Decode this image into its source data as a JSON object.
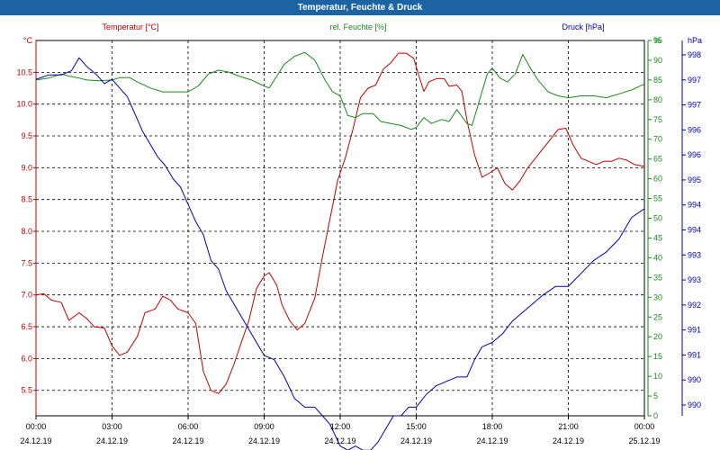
{
  "window": {
    "title": "Temperatur, Feuchte & Druck"
  },
  "chart_data": {
    "type": "line",
    "title": "Temperatur, Feuchte & Druck",
    "grid": true,
    "x_ticks": [
      {
        "time": "00:00",
        "date": "24.12.19"
      },
      {
        "time": "03:00",
        "date": "24.12.19"
      },
      {
        "time": "06:00",
        "date": "24.12.19"
      },
      {
        "time": "09:00",
        "date": "24.12.19"
      },
      {
        "time": "12:00",
        "date": "24.12.19"
      },
      {
        "time": "15:00",
        "date": "24.12.19"
      },
      {
        "time": "18:00",
        "date": "24.12.19"
      },
      {
        "time": "21:00",
        "date": "24.12.19"
      },
      {
        "time": "00:00",
        "date": "25.12.19"
      }
    ],
    "x_range_hours": [
      0,
      24
    ],
    "axes": {
      "temperature": {
        "unit_label": "°C",
        "legend": "Temperatur [°C]",
        "color": "#c00000",
        "range": [
          5.1,
          11.0
        ],
        "tick_labels": [
          "10.5",
          "10.0",
          "9.5",
          "9.0",
          "8.5",
          "8.0",
          "7.5",
          "7.0",
          "6.5",
          "6.0",
          "5.5"
        ]
      },
      "humidity": {
        "unit_label": "%",
        "legend": "rel. Feuchte [%]",
        "color": "#1a8a1a",
        "range": [
          0,
          95
        ],
        "tick_labels": [
          "95",
          "90",
          "85",
          "80",
          "75",
          "70",
          "65",
          "60",
          "55",
          "50",
          "45",
          "40",
          "35",
          "30",
          "25",
          "20",
          "15",
          "10",
          "5",
          "0"
        ]
      },
      "pressure": {
        "unit_label": "hPa",
        "legend": "Druck [hPa]",
        "color": "#0000aa",
        "range": [
          989.6,
          998.3
        ],
        "tick_labels": [
          "998",
          "997",
          "997",
          "996",
          "996",
          "995",
          "994",
          "994",
          "993",
          "993",
          "992",
          "991",
          "991",
          "990",
          "990"
        ]
      }
    },
    "series": [
      {
        "name": "Temperatur [°C]",
        "axis": "temperature",
        "points": [
          [
            0,
            7.0
          ],
          [
            0.3,
            7.02
          ],
          [
            0.6,
            6.92
          ],
          [
            1.0,
            6.88
          ],
          [
            1.3,
            6.6
          ],
          [
            1.7,
            6.72
          ],
          [
            2.0,
            6.63
          ],
          [
            2.3,
            6.5
          ],
          [
            2.7,
            6.48
          ],
          [
            3.0,
            6.2
          ],
          [
            3.3,
            6.05
          ],
          [
            3.6,
            6.1
          ],
          [
            4.0,
            6.35
          ],
          [
            4.3,
            6.72
          ],
          [
            4.7,
            6.78
          ],
          [
            5.0,
            6.98
          ],
          [
            5.3,
            6.92
          ],
          [
            5.6,
            6.78
          ],
          [
            6.0,
            6.72
          ],
          [
            6.3,
            6.55
          ],
          [
            6.6,
            5.8
          ],
          [
            6.9,
            5.5
          ],
          [
            7.2,
            5.45
          ],
          [
            7.5,
            5.6
          ],
          [
            7.8,
            5.9
          ],
          [
            8.1,
            6.25
          ],
          [
            8.4,
            6.6
          ],
          [
            8.7,
            7.1
          ],
          [
            9.0,
            7.3
          ],
          [
            9.2,
            7.35
          ],
          [
            9.5,
            7.15
          ],
          [
            9.7,
            6.85
          ],
          [
            10.0,
            6.6
          ],
          [
            10.3,
            6.45
          ],
          [
            10.6,
            6.55
          ],
          [
            11.0,
            6.95
          ],
          [
            11.3,
            7.6
          ],
          [
            11.6,
            8.2
          ],
          [
            11.9,
            8.8
          ],
          [
            12.2,
            9.15
          ],
          [
            12.5,
            9.6
          ],
          [
            12.8,
            10.1
          ],
          [
            13.1,
            10.25
          ],
          [
            13.4,
            10.3
          ],
          [
            13.7,
            10.55
          ],
          [
            14.0,
            10.65
          ],
          [
            14.3,
            10.8
          ],
          [
            14.6,
            10.8
          ],
          [
            14.9,
            10.72
          ],
          [
            15.1,
            10.45
          ],
          [
            15.3,
            10.2
          ],
          [
            15.5,
            10.35
          ],
          [
            15.8,
            10.4
          ],
          [
            16.1,
            10.4
          ],
          [
            16.3,
            10.28
          ],
          [
            16.6,
            10.3
          ],
          [
            16.8,
            10.2
          ],
          [
            17.0,
            9.75
          ],
          [
            17.3,
            9.2
          ],
          [
            17.6,
            8.85
          ],
          [
            17.9,
            8.92
          ],
          [
            18.2,
            9.0
          ],
          [
            18.5,
            8.75
          ],
          [
            18.8,
            8.65
          ],
          [
            19.1,
            8.8
          ],
          [
            19.4,
            9.0
          ],
          [
            19.7,
            9.15
          ],
          [
            20.0,
            9.3
          ],
          [
            20.3,
            9.45
          ],
          [
            20.6,
            9.6
          ],
          [
            20.9,
            9.62
          ],
          [
            21.2,
            9.35
          ],
          [
            21.5,
            9.15
          ],
          [
            21.8,
            9.1
          ],
          [
            22.1,
            9.05
          ],
          [
            22.4,
            9.1
          ],
          [
            22.7,
            9.1
          ],
          [
            23.0,
            9.15
          ],
          [
            23.3,
            9.12
          ],
          [
            23.6,
            9.05
          ],
          [
            24.0,
            9.02
          ]
        ]
      },
      {
        "name": "rel. Feuchte [%]",
        "axis": "humidity",
        "points": [
          [
            0,
            85.0
          ],
          [
            0.5,
            85.5
          ],
          [
            1.0,
            86.5
          ],
          [
            1.3,
            86.0
          ],
          [
            1.7,
            85.5
          ],
          [
            2.0,
            85.0
          ],
          [
            2.5,
            84.8
          ],
          [
            3.0,
            85.0
          ],
          [
            3.3,
            85.6
          ],
          [
            3.7,
            85.6
          ],
          [
            4.0,
            84.5
          ],
          [
            4.5,
            83.0
          ],
          [
            5.0,
            82.0
          ],
          [
            5.5,
            82.0
          ],
          [
            6.0,
            82.0
          ],
          [
            6.4,
            83.5
          ],
          [
            6.8,
            86.5
          ],
          [
            7.2,
            87.5
          ],
          [
            7.6,
            87.0
          ],
          [
            8.0,
            86.0
          ],
          [
            8.5,
            85.0
          ],
          [
            9.0,
            83.5
          ],
          [
            9.2,
            83.0
          ],
          [
            9.5,
            86.0
          ],
          [
            9.8,
            89.0
          ],
          [
            10.2,
            91.0
          ],
          [
            10.6,
            92.0
          ],
          [
            11.0,
            90.0
          ],
          [
            11.4,
            85.0
          ],
          [
            11.7,
            82.0
          ],
          [
            12.0,
            81.0
          ],
          [
            12.3,
            76.0
          ],
          [
            12.6,
            75.5
          ],
          [
            12.9,
            76.5
          ],
          [
            13.3,
            76.5
          ],
          [
            13.6,
            74.5
          ],
          [
            14.0,
            74.0
          ],
          [
            14.4,
            73.5
          ],
          [
            14.8,
            72.5
          ],
          [
            15.0,
            73.0
          ],
          [
            15.3,
            75.5
          ],
          [
            15.6,
            74.0
          ],
          [
            16.0,
            75.0
          ],
          [
            16.3,
            74.5
          ],
          [
            16.6,
            77.5
          ],
          [
            17.0,
            74.0
          ],
          [
            17.2,
            73.5
          ],
          [
            17.5,
            80.0
          ],
          [
            17.8,
            86.5
          ],
          [
            18.0,
            88.0
          ],
          [
            18.3,
            85.5
          ],
          [
            18.6,
            84.5
          ],
          [
            18.9,
            86.5
          ],
          [
            19.2,
            91.5
          ],
          [
            19.5,
            88.0
          ],
          [
            19.8,
            85.0
          ],
          [
            20.2,
            82.0
          ],
          [
            20.6,
            81.0
          ],
          [
            21.0,
            80.5
          ],
          [
            21.5,
            81.0
          ],
          [
            22.0,
            81.0
          ],
          [
            22.5,
            80.5
          ],
          [
            23.0,
            81.5
          ],
          [
            23.5,
            82.5
          ],
          [
            24.0,
            84.0
          ]
        ]
      },
      {
        "name": "Druck [hPa]",
        "axis": "pressure",
        "points": [
          [
            0,
            997.4
          ],
          [
            0.5,
            997.5
          ],
          [
            1.0,
            997.5
          ],
          [
            1.4,
            997.6
          ],
          [
            1.7,
            997.9
          ],
          [
            2.0,
            997.7
          ],
          [
            2.4,
            997.5
          ],
          [
            2.7,
            997.3
          ],
          [
            3.0,
            997.4
          ],
          [
            3.3,
            997.2
          ],
          [
            3.6,
            997.0
          ],
          [
            3.9,
            996.6
          ],
          [
            4.2,
            996.2
          ],
          [
            4.5,
            995.9
          ],
          [
            4.8,
            995.6
          ],
          [
            5.1,
            995.4
          ],
          [
            5.4,
            995.1
          ],
          [
            5.7,
            994.9
          ],
          [
            6.0,
            994.5
          ],
          [
            6.3,
            994.1
          ],
          [
            6.6,
            993.8
          ],
          [
            6.9,
            993.2
          ],
          [
            7.2,
            993.0
          ],
          [
            7.5,
            992.5
          ],
          [
            7.8,
            992.2
          ],
          [
            8.1,
            991.9
          ],
          [
            8.4,
            991.6
          ],
          [
            8.7,
            991.3
          ],
          [
            9.0,
            991.0
          ],
          [
            9.4,
            990.9
          ],
          [
            9.8,
            990.5
          ],
          [
            10.2,
            990.0
          ],
          [
            10.6,
            989.8
          ],
          [
            11.0,
            989.8
          ],
          [
            11.3,
            989.6
          ],
          [
            11.6,
            989.4
          ],
          [
            12.0,
            988.9
          ],
          [
            12.3,
            988.8
          ],
          [
            12.6,
            988.9
          ],
          [
            12.9,
            988.8
          ],
          [
            13.2,
            988.8
          ],
          [
            13.5,
            989.0
          ],
          [
            13.8,
            989.3
          ],
          [
            14.1,
            989.6
          ],
          [
            14.4,
            989.6
          ],
          [
            14.7,
            989.8
          ],
          [
            15.0,
            989.8
          ],
          [
            15.4,
            990.1
          ],
          [
            15.8,
            990.3
          ],
          [
            16.2,
            990.4
          ],
          [
            16.6,
            990.5
          ],
          [
            17.0,
            990.5
          ],
          [
            17.3,
            990.9
          ],
          [
            17.6,
            991.2
          ],
          [
            18.0,
            991.3
          ],
          [
            18.4,
            991.5
          ],
          [
            18.8,
            991.8
          ],
          [
            19.2,
            992.0
          ],
          [
            19.6,
            992.2
          ],
          [
            20.0,
            992.4
          ],
          [
            20.5,
            992.6
          ],
          [
            21.0,
            992.6
          ],
          [
            21.5,
            992.9
          ],
          [
            22.0,
            993.2
          ],
          [
            22.5,
            993.4
          ],
          [
            23.0,
            993.7
          ],
          [
            23.5,
            994.2
          ],
          [
            24.0,
            994.4
          ]
        ]
      }
    ]
  }
}
